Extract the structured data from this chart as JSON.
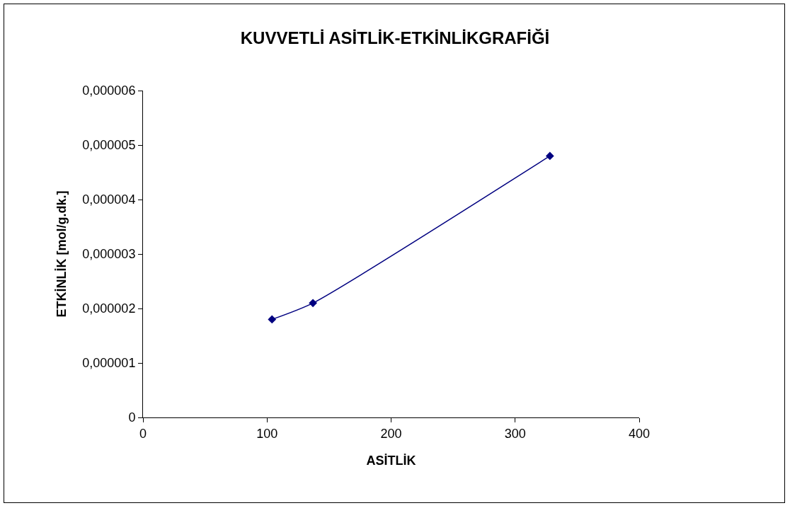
{
  "chart_data": {
    "type": "line",
    "title": "KUVVETLİ ASİTLİK-ETKİNLİKGRAFİĞİ",
    "xlabel": "ASİTLİK",
    "ylabel": "ETKİNLİK [mol/g.dk.]",
    "x": [
      104,
      137,
      328
    ],
    "series": [
      {
        "color": "#000080",
        "values": [
          1.8e-06,
          2.1e-06,
          4.8e-06
        ]
      }
    ],
    "xlim": [
      0,
      400
    ],
    "xticks": [
      0,
      100,
      200,
      300,
      400
    ],
    "ylim": [
      0,
      6e-06
    ],
    "yticks": [
      0,
      {
        "value": 1e-06,
        "label": "0,000001"
      },
      {
        "value": 2e-06,
        "label": "0,000002"
      },
      {
        "value": 3e-06,
        "label": "0,000003"
      },
      {
        "value": 4e-06,
        "label": "0,000004"
      },
      {
        "value": 5e-06,
        "label": "0,000005"
      },
      {
        "value": 6e-06,
        "label": "0,000006"
      }
    ],
    "marker": "diamond",
    "line_style": "solid"
  }
}
